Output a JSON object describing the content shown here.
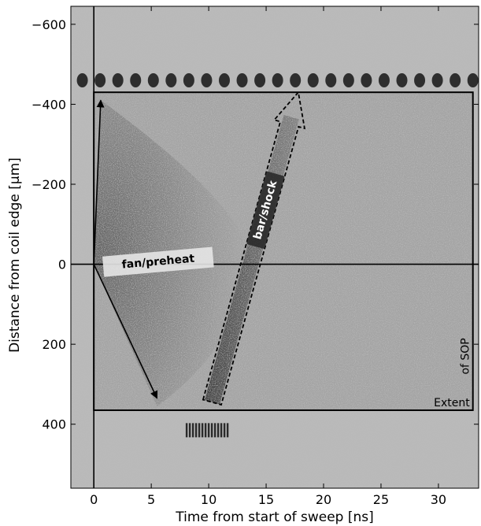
{
  "chart_data": {
    "type": "heatmap",
    "xlabel": "Time from start of sweep [ns]",
    "ylabel": "Distance from coil edge [μm]",
    "xlim": [
      -2,
      33.5
    ],
    "ylim": [
      560,
      -645
    ],
    "x_ticks": [
      0,
      5,
      10,
      15,
      20,
      25,
      30
    ],
    "x_tick_labels": [
      "0",
      "5",
      "10",
      "15",
      "20",
      "25",
      "30"
    ],
    "y_ticks": [
      -600,
      -400,
      -200,
      0,
      200,
      400
    ],
    "y_tick_labels": [
      "−600",
      "−400",
      "−200",
      "0",
      "200",
      "400"
    ],
    "grid": false,
    "colormap": "grayscale",
    "reference_lines": {
      "vertical_x": 0,
      "horizontal_y": 0
    },
    "sop_extent_box": {
      "x": [
        0,
        33
      ],
      "y": [
        -430,
        365
      ],
      "label_lines": [
        "of SOP",
        "Extent"
      ]
    },
    "fiducial_comb": {
      "y": -460,
      "x_start": -1,
      "x_end": 33,
      "count": 23
    },
    "lower_fiducial_streak": {
      "x": [
        8,
        11.7
      ],
      "y": 415
    },
    "annotations": [
      {
        "id": "fan-preheat",
        "text": "fan/preheat",
        "arrows": [
          {
            "from": [
              0,
              0
            ],
            "to": [
              0.6,
              -410
            ]
          },
          {
            "from": [
              0,
              0
            ],
            "to": [
              5.5,
              335
            ]
          }
        ]
      },
      {
        "id": "bar-shock",
        "text": "bar/shock",
        "arrow_from": [
          10.3,
          345
        ],
        "arrow_to": [
          17.8,
          -430
        ]
      }
    ]
  }
}
